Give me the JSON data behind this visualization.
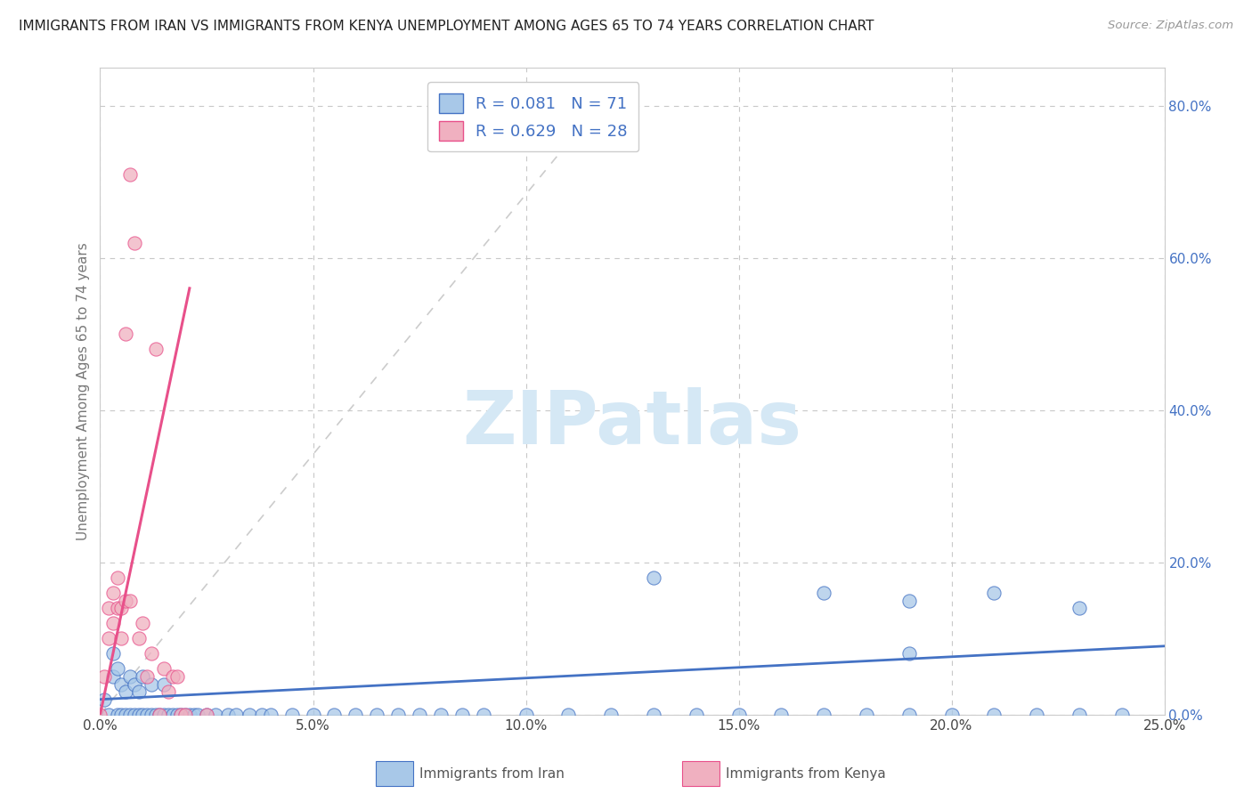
{
  "title": "IMMIGRANTS FROM IRAN VS IMMIGRANTS FROM KENYA UNEMPLOYMENT AMONG AGES 65 TO 74 YEARS CORRELATION CHART",
  "source": "Source: ZipAtlas.com",
  "ylabel": "Unemployment Among Ages 65 to 74 years",
  "legend_label1": "Immigrants from Iran",
  "legend_label2": "Immigrants from Kenya",
  "R_iran": 0.081,
  "N_iran": 71,
  "R_kenya": 0.629,
  "N_kenya": 28,
  "xlim": [
    0.0,
    0.25
  ],
  "ylim": [
    0.0,
    0.85
  ],
  "xticks": [
    0.0,
    0.05,
    0.1,
    0.15,
    0.2,
    0.25
  ],
  "yticks": [
    0.0,
    0.2,
    0.4,
    0.6,
    0.8
  ],
  "color_iran": "#a8c8e8",
  "color_kenya": "#f0b0c0",
  "trend_iran_color": "#4472c4",
  "trend_kenya_color": "#e8508a",
  "bg_color": "#ffffff",
  "grid_color": "#c8c8c8",
  "watermark_color": "#d5e8f5",
  "title_color": "#222222",
  "source_color": "#999999",
  "ylabel_color": "#777777",
  "tick_color_y": "#4472c4",
  "tick_color_x": "#444444",
  "legend_text_color": "#555555",
  "legend_RN_color": "#4472c4",
  "diag_color": "#cccccc",
  "iran_x": [
    0.001,
    0.002,
    0.003,
    0.003,
    0.004,
    0.004,
    0.005,
    0.005,
    0.006,
    0.006,
    0.007,
    0.007,
    0.008,
    0.008,
    0.009,
    0.009,
    0.01,
    0.01,
    0.011,
    0.012,
    0.012,
    0.013,
    0.014,
    0.015,
    0.015,
    0.016,
    0.017,
    0.018,
    0.019,
    0.02,
    0.021,
    0.022,
    0.023,
    0.025,
    0.027,
    0.03,
    0.032,
    0.035,
    0.038,
    0.04,
    0.045,
    0.05,
    0.055,
    0.06,
    0.065,
    0.07,
    0.075,
    0.08,
    0.085,
    0.09,
    0.1,
    0.11,
    0.12,
    0.13,
    0.14,
    0.15,
    0.16,
    0.17,
    0.18,
    0.19,
    0.2,
    0.21,
    0.22,
    0.23,
    0.24,
    0.13,
    0.17,
    0.19,
    0.21,
    0.19,
    0.23
  ],
  "iran_y": [
    0.02,
    0.0,
    0.05,
    0.08,
    0.0,
    0.06,
    0.0,
    0.04,
    0.0,
    0.03,
    0.0,
    0.05,
    0.0,
    0.04,
    0.0,
    0.03,
    0.0,
    0.05,
    0.0,
    0.0,
    0.04,
    0.0,
    0.0,
    0.0,
    0.04,
    0.0,
    0.0,
    0.0,
    0.0,
    0.0,
    0.0,
    0.0,
    0.0,
    0.0,
    0.0,
    0.0,
    0.0,
    0.0,
    0.0,
    0.0,
    0.0,
    0.0,
    0.0,
    0.0,
    0.0,
    0.0,
    0.0,
    0.0,
    0.0,
    0.0,
    0.0,
    0.0,
    0.0,
    0.0,
    0.0,
    0.0,
    0.0,
    0.0,
    0.0,
    0.0,
    0.0,
    0.0,
    0.0,
    0.0,
    0.0,
    0.18,
    0.16,
    0.08,
    0.16,
    0.15,
    0.14
  ],
  "kenya_x": [
    0.0,
    0.001,
    0.002,
    0.002,
    0.003,
    0.003,
    0.004,
    0.004,
    0.005,
    0.005,
    0.006,
    0.006,
    0.007,
    0.007,
    0.008,
    0.009,
    0.01,
    0.011,
    0.012,
    0.013,
    0.014,
    0.015,
    0.016,
    0.017,
    0.018,
    0.019,
    0.02,
    0.025
  ],
  "kenya_y": [
    0.0,
    0.05,
    0.1,
    0.14,
    0.12,
    0.16,
    0.14,
    0.18,
    0.1,
    0.14,
    0.15,
    0.5,
    0.71,
    0.15,
    0.62,
    0.1,
    0.12,
    0.05,
    0.08,
    0.48,
    0.0,
    0.06,
    0.03,
    0.05,
    0.05,
    0.0,
    0.0,
    0.0
  ],
  "kenya_trend_x": [
    0.0,
    0.021
  ],
  "kenya_trend_y": [
    0.0,
    0.56
  ],
  "iran_trend_x": [
    0.0,
    0.25
  ],
  "iran_trend_y": [
    0.02,
    0.09
  ]
}
